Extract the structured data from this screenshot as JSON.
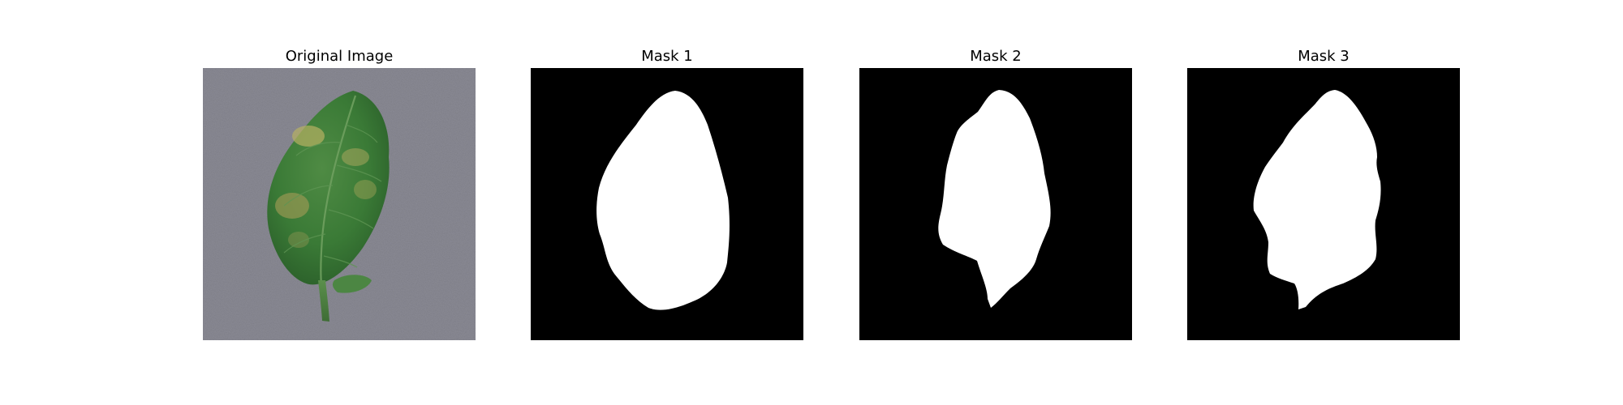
{
  "panels": [
    {
      "title": "Original Image",
      "kind": "photo",
      "subject": "leaf-photo"
    },
    {
      "title": "Mask 1",
      "kind": "mask",
      "subject": "leaf-mask"
    },
    {
      "title": "Mask 2",
      "kind": "mask",
      "subject": "leaf-mask"
    },
    {
      "title": "Mask 3",
      "kind": "mask",
      "subject": "leaf-mask"
    }
  ],
  "colors": {
    "background": "#ffffff",
    "mask_background": "#000000",
    "mask_foreground": "#ffffff",
    "photo_background": "#8a8a94",
    "leaf_dark": "#2f6a2c",
    "leaf_mid": "#3f7f3a",
    "leaf_light": "#a9a85a"
  }
}
